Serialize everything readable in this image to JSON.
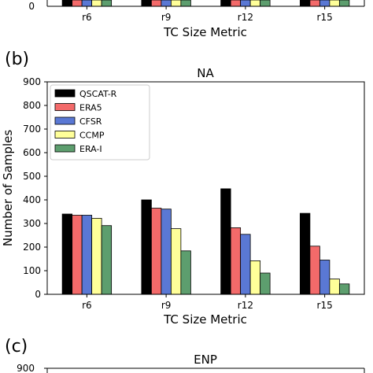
{
  "chart_data": [
    {
      "panel_label": "",
      "title": "",
      "type": "bar",
      "xlabel": "TC Size Metric",
      "ylabel": "",
      "ylim": [
        0,
        900
      ],
      "categories": [
        "r6",
        "r9",
        "r12",
        "r15"
      ],
      "series": [],
      "visible": "bottom fragment only (x-axis, tick labels and x label)"
    },
    {
      "panel_label": "(b)",
      "title": "NA",
      "type": "bar",
      "xlabel": "TC Size Metric",
      "ylabel": "Number of Samples",
      "ylim": [
        0,
        900
      ],
      "yticks": [
        0,
        100,
        200,
        300,
        400,
        500,
        600,
        700,
        800,
        900
      ],
      "categories": [
        "r6",
        "r9",
        "r12",
        "r15"
      ],
      "legend_position": "top-left",
      "grid": false,
      "series": [
        {
          "name": "QSCAT-R",
          "color": "#000000",
          "values": [
            340,
            400,
            447,
            343
          ]
        },
        {
          "name": "ERA5",
          "color": "#f36a6a",
          "values": [
            335,
            365,
            282,
            204
          ]
        },
        {
          "name": "CFSR",
          "color": "#5a78d4",
          "values": [
            335,
            361,
            254,
            145
          ]
        },
        {
          "name": "CCMP",
          "color": "#ffff99",
          "values": [
            322,
            278,
            142,
            65
          ]
        },
        {
          "name": "ERA-I",
          "color": "#5d9e6e",
          "values": [
            291,
            184,
            90,
            44
          ]
        }
      ]
    },
    {
      "panel_label": "(c)",
      "title": "ENP",
      "type": "bar",
      "ylim": [
        0,
        900
      ],
      "yticks": [
        900
      ],
      "series": [],
      "visible": "top fragment only (title and top tick)"
    }
  ]
}
